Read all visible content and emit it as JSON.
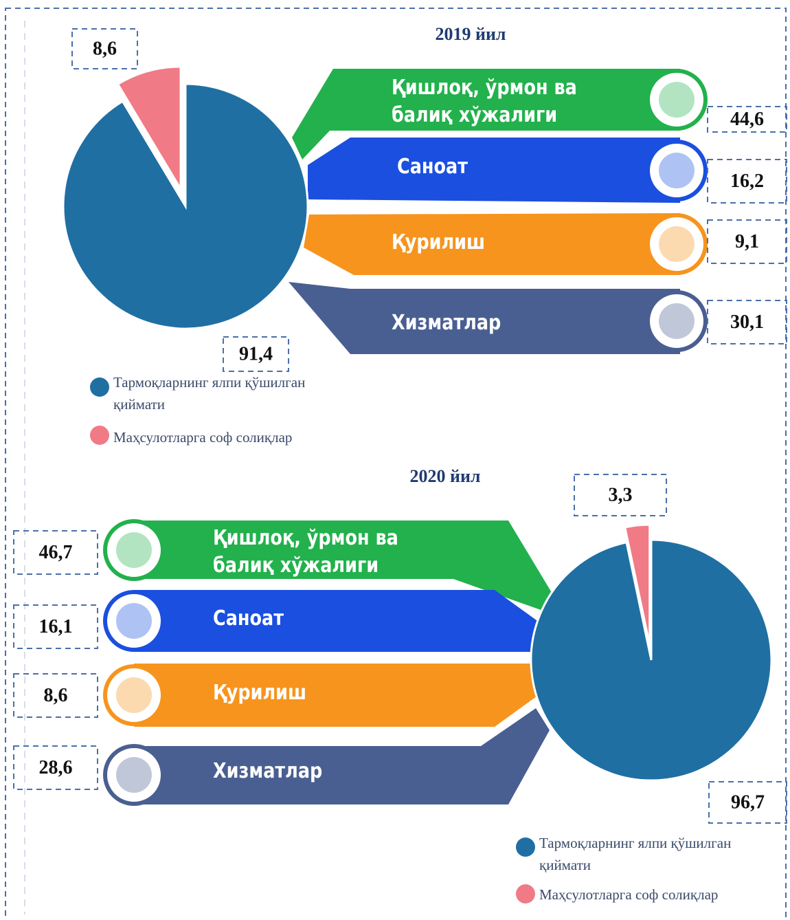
{
  "chart_data": [
    {
      "type": "pie",
      "title": "2019 йил",
      "categories": [
        "Тармоқларнинг ялпи қўшилган қиймати",
        "Маҳсулотларга соф солиқлар"
      ],
      "values": [
        91.4,
        8.6
      ],
      "value_labels": [
        "91,4",
        "8,6"
      ],
      "colors": [
        "#1f6fa3",
        "#f07b86"
      ],
      "sectors": {
        "categories": [
          "Қишлоқ, ўрмон ва балиқ хўжалиги",
          "Саноат",
          "Қурилиш",
          "Хизматлар"
        ],
        "values": [
          44.6,
          16.2,
          9.1,
          30.1
        ],
        "value_labels": [
          "44,6",
          "16,2",
          "9,1",
          "30,1"
        ],
        "colors": [
          "#22b14c",
          "#1a4fe0",
          "#f7941d",
          "#4a5f91"
        ]
      }
    },
    {
      "type": "pie",
      "title": "2020 йил",
      "categories": [
        "Тармоқларнинг ялпи қўшилган қиймати",
        "Маҳсулотларга соф солиқлар"
      ],
      "values": [
        96.7,
        3.3
      ],
      "value_labels": [
        "96,7",
        "3,3"
      ],
      "colors": [
        "#1f6fa3",
        "#f07b86"
      ],
      "sectors": {
        "categories": [
          "Қишлоқ, ўрмон ва балиқ хўжалиги",
          "Саноат",
          "Қурилиш",
          "Хизматлар"
        ],
        "values": [
          46.7,
          16.1,
          8.6,
          28.6
        ],
        "value_labels": [
          "46,7",
          "16,1",
          "8,6",
          "28,6"
        ],
        "colors": [
          "#22b14c",
          "#1a4fe0",
          "#f7941d",
          "#4a5f91"
        ]
      }
    }
  ]
}
